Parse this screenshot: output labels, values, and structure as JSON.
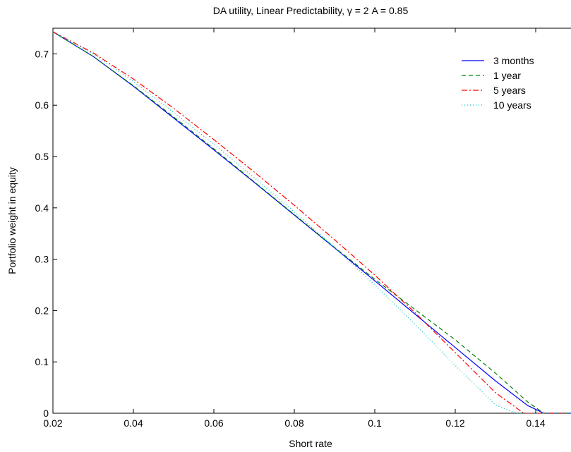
{
  "chart_data": {
    "type": "line",
    "title": "DA utility, Linear Predictability, γ = 2 A = 0.85",
    "xlabel": "Short rate",
    "ylabel": "Portfolio weight in equity",
    "xlim": [
      0.02,
      0.15
    ],
    "ylim": [
      0,
      0.75
    ],
    "xticks": [
      "0.02",
      "0.04",
      "0.06",
      "0.08",
      "0.1",
      "0.12",
      "0.14"
    ],
    "yticks": [
      "0",
      "0.1",
      "0.2",
      "0.3",
      "0.4",
      "0.5",
      "0.6",
      "0.7"
    ],
    "grid": false,
    "legend_position": "top-right",
    "series": [
      {
        "name": "3 months",
        "color": "#0000ff",
        "dash": "solid",
        "x": [
          0.02,
          0.03,
          0.04,
          0.05,
          0.06,
          0.07,
          0.08,
          0.09,
          0.1,
          0.11,
          0.12,
          0.13,
          0.138,
          0.142,
          0.15
        ],
        "y": [
          0.743,
          0.695,
          0.637,
          0.575,
          0.513,
          0.45,
          0.386,
          0.322,
          0.258,
          0.193,
          0.128,
          0.063,
          0.015,
          0.0,
          0.0
        ]
      },
      {
        "name": "1 year",
        "color": "#008000",
        "dash": "dashed",
        "x": [
          0.02,
          0.03,
          0.04,
          0.05,
          0.06,
          0.07,
          0.08,
          0.09,
          0.1,
          0.11,
          0.12,
          0.13,
          0.138,
          0.142,
          0.15
        ],
        "y": [
          0.743,
          0.695,
          0.638,
          0.577,
          0.515,
          0.451,
          0.387,
          0.323,
          0.261,
          0.202,
          0.143,
          0.078,
          0.022,
          0.0,
          0.0
        ]
      },
      {
        "name": "5 years",
        "color": "#ff0000",
        "dash": "dashdot",
        "x": [
          0.02,
          0.03,
          0.04,
          0.05,
          0.06,
          0.07,
          0.08,
          0.09,
          0.1,
          0.11,
          0.12,
          0.13,
          0.137,
          0.15
        ],
        "y": [
          0.743,
          0.702,
          0.651,
          0.594,
          0.533,
          0.47,
          0.405,
          0.338,
          0.269,
          0.196,
          0.118,
          0.04,
          0.0,
          0.0
        ]
      },
      {
        "name": "10 years",
        "color": "#00bfbf",
        "dash": "dotted",
        "x": [
          0.02,
          0.03,
          0.04,
          0.05,
          0.06,
          0.07,
          0.08,
          0.09,
          0.1,
          0.11,
          0.12,
          0.13,
          0.135,
          0.15
        ],
        "y": [
          0.743,
          0.7,
          0.646,
          0.586,
          0.524,
          0.459,
          0.392,
          0.323,
          0.25,
          0.173,
          0.093,
          0.016,
          0.0,
          0.0
        ]
      }
    ]
  }
}
